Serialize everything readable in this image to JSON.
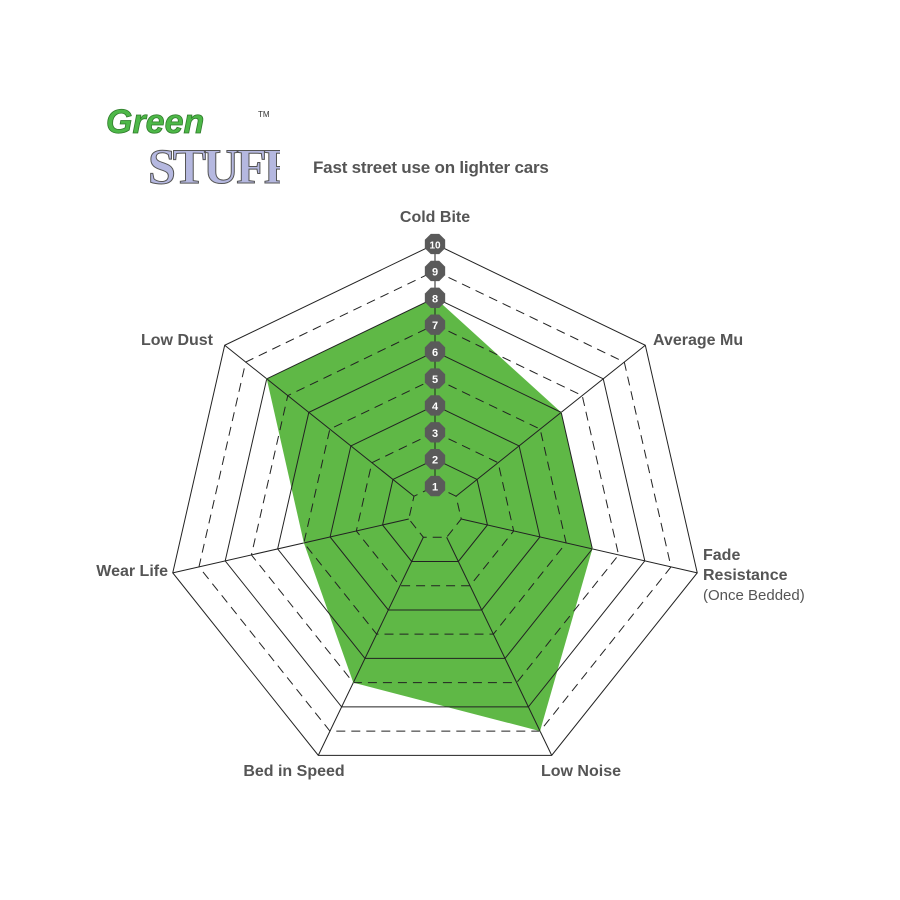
{
  "logo": {
    "text_top": "Green",
    "text_bottom": "STUFF",
    "trademark": "TM",
    "colors": {
      "green": "#4db848",
      "lavender": "#b5b8e0"
    }
  },
  "chart_data": {
    "type": "radar",
    "title": "Fast street use on lighter cars",
    "axes": [
      "Cold Bite",
      "Average Mu",
      "Fade Resistance",
      "Low Noise",
      "Bed in Speed",
      "Wear Life",
      "Low Dust"
    ],
    "axis_sublabels": {
      "Fade Resistance": "(Once Bedded)"
    },
    "values": [
      8,
      6,
      6,
      9,
      7,
      5,
      8
    ],
    "range": [
      0,
      10
    ],
    "scale_labels": [
      "1",
      "2",
      "3",
      "4",
      "5",
      "6",
      "7",
      "8",
      "9",
      "10"
    ],
    "fill_color": "#5fb846",
    "scale_marker_color": "#5a5a5a",
    "grid": "alternating solid and dashed heptagon rings"
  }
}
